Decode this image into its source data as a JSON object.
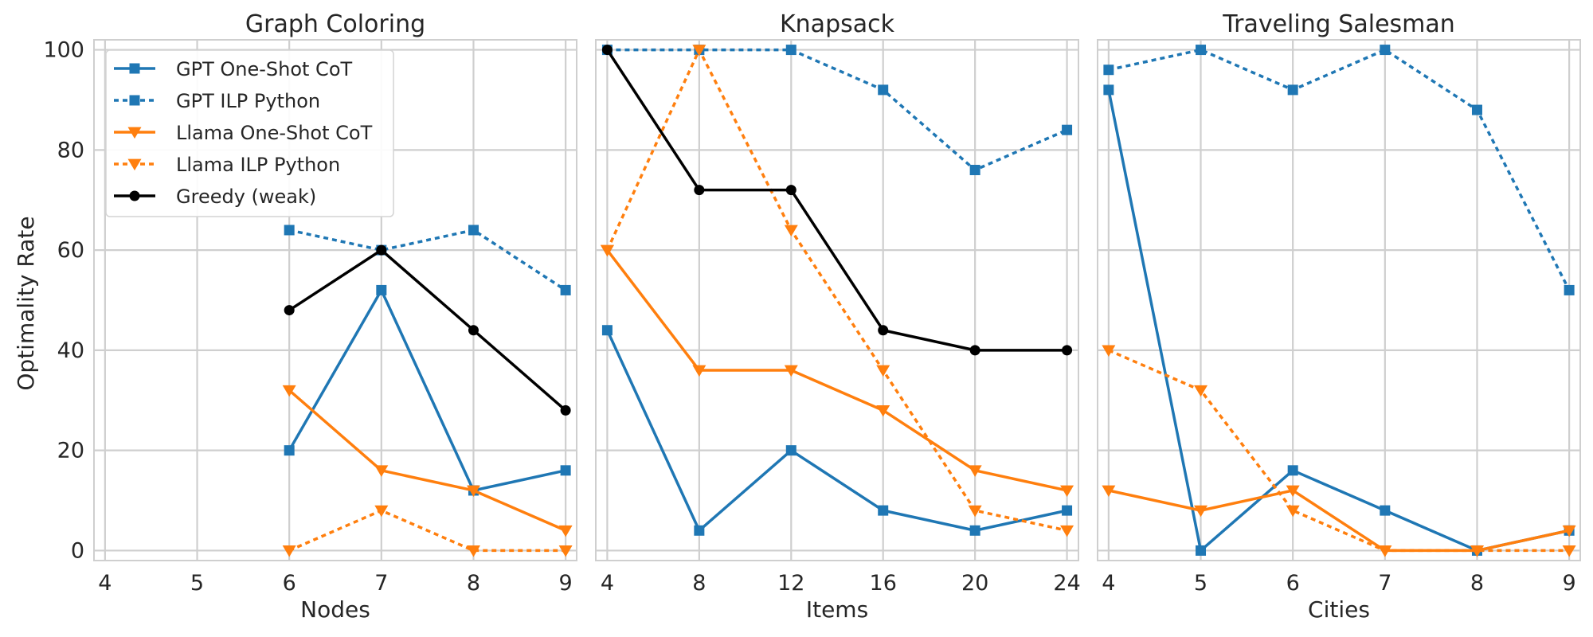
{
  "chart_data": {
    "type": "line",
    "ylabel": "Optimality Rate",
    "ylim": [
      -2,
      102
    ],
    "yticks": [
      0,
      20,
      40,
      60,
      80,
      100
    ],
    "grid": true,
    "legend_placement": "top-left of first panel",
    "series_styles": {
      "GPT One-Shot CoT": {
        "color": "#1f77b4",
        "line": "solid",
        "marker": "square"
      },
      "GPT ILP Python": {
        "color": "#1f77b4",
        "line": "dotted",
        "marker": "square"
      },
      "Llama One-Shot CoT": {
        "color": "#ff7f0e",
        "line": "solid",
        "marker": "triangle-down"
      },
      "Llama ILP Python": {
        "color": "#ff7f0e",
        "line": "dotted",
        "marker": "triangle-down"
      },
      "Greedy (weak)": {
        "color": "#000000",
        "line": "solid",
        "marker": "circle"
      }
    },
    "legend": [
      "GPT One-Shot CoT",
      "GPT ILP Python",
      "Llama One-Shot CoT",
      "Llama ILP Python",
      "Greedy (weak)"
    ],
    "panels": [
      {
        "title": "Graph Coloring",
        "xlabel": "Nodes",
        "xticks": [
          4,
          5,
          6,
          7,
          8,
          9
        ],
        "xlim": [
          3.88,
          9.12
        ],
        "series": [
          {
            "name": "GPT One-Shot CoT",
            "x": [
              6,
              7,
              8,
              9
            ],
            "y": [
              20,
              52,
              12,
              16
            ]
          },
          {
            "name": "GPT ILP Python",
            "x": [
              6,
              7,
              8,
              9
            ],
            "y": [
              64,
              60,
              64,
              52
            ]
          },
          {
            "name": "Llama One-Shot CoT",
            "x": [
              6,
              7,
              8,
              9
            ],
            "y": [
              32,
              16,
              12,
              4
            ]
          },
          {
            "name": "Llama ILP Python",
            "x": [
              6,
              7,
              8,
              9
            ],
            "y": [
              0,
              8,
              0,
              0
            ]
          },
          {
            "name": "Greedy (weak)",
            "x": [
              6,
              7,
              8,
              9
            ],
            "y": [
              48,
              60,
              44,
              28
            ]
          }
        ]
      },
      {
        "title": "Knapsack",
        "xlabel": "Items",
        "xticks": [
          4,
          8,
          12,
          16,
          20,
          24
        ],
        "xlim": [
          3.5,
          24.5
        ],
        "series": [
          {
            "name": "GPT One-Shot CoT",
            "x": [
              4,
              8,
              12,
              16,
              20,
              24
            ],
            "y": [
              44,
              4,
              20,
              8,
              4,
              8
            ]
          },
          {
            "name": "GPT ILP Python",
            "x": [
              4,
              8,
              12,
              16,
              20,
              24
            ],
            "y": [
              100,
              100,
              100,
              92,
              76,
              84
            ]
          },
          {
            "name": "Llama One-Shot CoT",
            "x": [
              4,
              8,
              12,
              16,
              20,
              24
            ],
            "y": [
              60,
              36,
              36,
              28,
              16,
              12
            ]
          },
          {
            "name": "Llama ILP Python",
            "x": [
              4,
              8,
              12,
              16,
              20,
              24
            ],
            "y": [
              60,
              100,
              64,
              36,
              8,
              4
            ]
          },
          {
            "name": "Greedy (weak)",
            "x": [
              4,
              8,
              12,
              16,
              20,
              24
            ],
            "y": [
              100,
              72,
              72,
              44,
              40,
              40
            ]
          }
        ]
      },
      {
        "title": "Traveling Salesman",
        "xlabel": "Cities",
        "xticks": [
          4,
          5,
          6,
          7,
          8,
          9
        ],
        "xlim": [
          3.88,
          9.12
        ],
        "series": [
          {
            "name": "GPT One-Shot CoT",
            "x": [
              4,
              5,
              6,
              7,
              8,
              9
            ],
            "y": [
              92,
              0,
              16,
              8,
              0,
              4
            ]
          },
          {
            "name": "GPT ILP Python",
            "x": [
              4,
              5,
              6,
              7,
              8,
              9
            ],
            "y": [
              96,
              100,
              92,
              100,
              88,
              52
            ]
          },
          {
            "name": "Llama One-Shot CoT",
            "x": [
              4,
              5,
              6,
              7,
              8,
              9
            ],
            "y": [
              12,
              8,
              12,
              0,
              0,
              4
            ]
          },
          {
            "name": "Llama ILP Python",
            "x": [
              4,
              5,
              6,
              7,
              8,
              9
            ],
            "y": [
              40,
              32,
              8,
              0,
              0,
              0
            ]
          }
        ]
      }
    ]
  }
}
